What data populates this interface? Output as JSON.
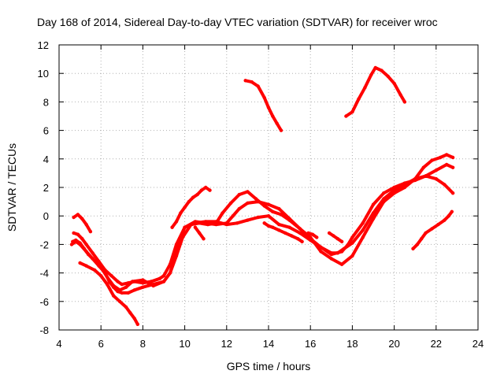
{
  "chart_data": {
    "type": "line",
    "title": "Day 168 of 2014, Sidereal Day-to-day VTEC variation (SDTVAR) for receiver wroc",
    "xlabel": "GPS time / hours",
    "ylabel": "SDTVAR / TECUs",
    "xlim": [
      4,
      24
    ],
    "ylim": [
      -8,
      12
    ],
    "xticks": [
      4,
      6,
      8,
      10,
      12,
      14,
      16,
      18,
      20,
      22,
      24
    ],
    "yticks": [
      -8,
      -6,
      -4,
      -2,
      0,
      2,
      4,
      6,
      8,
      10,
      12
    ],
    "grid": true,
    "color": "#ff0000",
    "series": [
      {
        "name": "s1",
        "x": [
          4.65,
          4.8,
          5.0,
          5.2,
          5.4,
          5.6,
          5.9,
          6.2,
          6.4,
          6.6,
          6.8,
          7.0,
          7.3,
          7.6,
          8.0,
          8.5,
          9.0,
          9.3,
          9.6,
          9.8,
          10.0,
          10.5,
          11.0,
          11.5,
          12.0,
          12.5,
          13.0,
          13.5,
          14.0,
          14.5,
          15.0,
          15.5,
          16.0,
          16.5,
          17.0,
          17.5,
          17.8,
          18.0,
          18.5,
          19.0,
          19.5,
          20.0,
          20.5,
          21.0,
          21.5,
          22.0,
          22.5,
          22.8
        ],
        "y": [
          -1.8,
          -1.7,
          -1.9,
          -2.3,
          -2.7,
          -3.0,
          -3.5,
          -4.0,
          -4.6,
          -5.0,
          -5.3,
          -5.4,
          -5.4,
          -5.2,
          -5.0,
          -4.8,
          -4.6,
          -4.0,
          -2.5,
          -1.5,
          -0.8,
          -0.5,
          -0.4,
          -0.4,
          -0.6,
          -0.5,
          -0.3,
          -0.1,
          0.0,
          -0.6,
          -0.8,
          -1.2,
          -1.7,
          -2.2,
          -2.7,
          -2.5,
          -2.0,
          -1.5,
          -0.5,
          0.8,
          1.6,
          2.0,
          2.3,
          2.5,
          2.8,
          3.2,
          3.6,
          3.4
        ]
      },
      {
        "name": "s2",
        "x": [
          4.7,
          4.9,
          5.1,
          5.3,
          5.6,
          5.9,
          6.2,
          6.5,
          6.8,
          7.0,
          7.3,
          7.6,
          8.0,
          8.4,
          8.8,
          9.0,
          9.3,
          9.6,
          10.0,
          10.5,
          11.0,
          11.5,
          12.0,
          12.3,
          12.6,
          13.0,
          13.5,
          14.0,
          14.5,
          15.0,
          15.5,
          16.0,
          16.5,
          17.0,
          17.3,
          17.6,
          18.0,
          18.5,
          19.0,
          19.5,
          20.0,
          20.5,
          21.0,
          21.5,
          22.0,
          22.4,
          22.8
        ],
        "y": [
          -1.2,
          -1.3,
          -1.6,
          -2.0,
          -2.6,
          -3.2,
          -3.8,
          -4.2,
          -4.6,
          -4.8,
          -4.7,
          -4.6,
          -4.7,
          -4.6,
          -4.4,
          -4.2,
          -3.4,
          -2.0,
          -0.8,
          -0.4,
          -0.5,
          -0.6,
          -0.5,
          0.0,
          0.5,
          0.9,
          1.0,
          0.8,
          0.5,
          -0.2,
          -0.9,
          -1.6,
          -2.2,
          -2.6,
          -2.6,
          -2.3,
          -1.9,
          -1.0,
          0.2,
          1.2,
          1.8,
          2.2,
          2.6,
          2.8,
          2.6,
          2.2,
          1.6
        ]
      },
      {
        "name": "s3",
        "x": [
          4.6,
          4.8,
          5.0,
          5.3,
          5.6,
          6.0,
          6.3,
          6.6,
          6.9,
          7.2,
          7.5,
          8.0,
          8.5,
          9.0,
          9.3,
          9.6,
          9.9,
          10.3,
          10.7,
          11.1,
          11.5,
          11.8,
          12.2,
          12.6,
          13.0,
          13.4,
          13.8,
          14.2,
          14.6,
          15.0,
          15.5,
          16.0,
          16.5,
          17.0,
          17.5,
          18.0,
          18.5,
          19.0,
          19.5,
          20.0,
          20.5,
          21.0,
          21.4,
          21.8,
          22.2,
          22.5,
          22.8
        ],
        "y": [
          -2.0,
          -1.8,
          -2.0,
          -2.5,
          -3.0,
          -3.6,
          -4.3,
          -4.9,
          -5.2,
          -5.0,
          -4.6,
          -4.5,
          -4.9,
          -4.6,
          -4.0,
          -2.8,
          -1.5,
          -0.6,
          -0.5,
          -0.6,
          -0.5,
          0.2,
          0.9,
          1.5,
          1.7,
          1.2,
          0.7,
          0.3,
          0.1,
          -0.3,
          -0.9,
          -1.5,
          -2.5,
          -3.0,
          -3.4,
          -2.8,
          -1.5,
          -0.2,
          1.0,
          1.6,
          2.0,
          2.6,
          3.4,
          3.9,
          4.1,
          4.3,
          4.1
        ]
      },
      {
        "name": "s4",
        "x": [
          4.7,
          4.9,
          5.1,
          5.3,
          5.5
        ],
        "y": [
          -0.1,
          0.1,
          -0.2,
          -0.6,
          -1.1
        ]
      },
      {
        "name": "s5",
        "x": [
          5.0,
          5.3,
          5.7,
          6.0,
          6.3,
          6.6,
          6.9,
          7.2,
          7.4,
          7.6,
          7.75
        ],
        "y": [
          -3.3,
          -3.5,
          -3.8,
          -4.2,
          -4.8,
          -5.6,
          -6.0,
          -6.4,
          -6.8,
          -7.2,
          -7.6
        ]
      },
      {
        "name": "s6",
        "x": [
          9.4,
          9.6,
          9.8,
          10.0,
          10.2,
          10.4,
          10.6,
          10.8,
          11.0,
          11.2
        ],
        "y": [
          -0.8,
          -0.4,
          0.2,
          0.6,
          1.0,
          1.3,
          1.5,
          1.8,
          2.0,
          1.8
        ]
      },
      {
        "name": "s7",
        "x": [
          10.5,
          10.7,
          10.9
        ],
        "y": [
          -0.8,
          -1.2,
          -1.6
        ]
      },
      {
        "name": "s8",
        "x": [
          12.9,
          13.2,
          13.5,
          13.8,
          14.0,
          14.2,
          14.4,
          14.6
        ],
        "y": [
          9.5,
          9.4,
          9.1,
          8.3,
          7.6,
          7.0,
          6.5,
          6.0
        ]
      },
      {
        "name": "s9",
        "x": [
          13.8,
          14.0,
          14.2,
          14.5,
          14.8,
          15.1,
          15.4,
          15.6
        ],
        "y": [
          -0.5,
          -0.7,
          -0.8,
          -1.0,
          -1.2,
          -1.4,
          -1.6,
          -1.8
        ]
      },
      {
        "name": "s10",
        "x": [
          15.9,
          16.1,
          16.3
        ],
        "y": [
          -1.2,
          -1.3,
          -1.5
        ]
      },
      {
        "name": "s11",
        "x": [
          16.9,
          17.1,
          17.3,
          17.5
        ],
        "y": [
          -1.2,
          -1.4,
          -1.6,
          -1.8
        ]
      },
      {
        "name": "s12",
        "x": [
          17.7,
          18.0,
          18.3,
          18.6,
          18.9,
          19.1,
          19.4,
          19.7,
          20.0,
          20.3,
          20.5
        ],
        "y": [
          7.0,
          7.3,
          8.2,
          9.0,
          9.9,
          10.4,
          10.2,
          9.8,
          9.3,
          8.5,
          8.0
        ]
      },
      {
        "name": "s13",
        "x": [
          20.9,
          21.1,
          21.3,
          21.5,
          21.8,
          22.1,
          22.4,
          22.6,
          22.75
        ],
        "y": [
          -2.3,
          -2.0,
          -1.6,
          -1.2,
          -0.9,
          -0.6,
          -0.3,
          0.0,
          0.3
        ]
      }
    ]
  }
}
